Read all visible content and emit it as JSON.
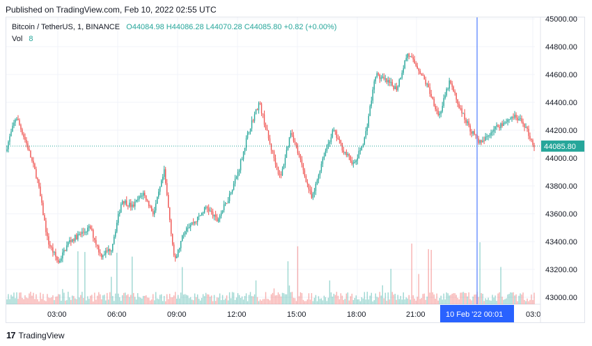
{
  "caption": "Published on TradingView.com, Feb 10, 2022 02:55 UTC",
  "legend": {
    "symbol": "Bitcoin / TetherUS, 1, BINANCE",
    "open": "O44084.98",
    "high": "H44086.28",
    "low": "L44070.28",
    "close": "C44085.80",
    "change": "+0.82 (+0.00%)",
    "vol_label": "Vol",
    "vol_value": "8"
  },
  "branding": {
    "name": "TradingView",
    "mark": "17"
  },
  "colors": {
    "up": "#26a69a",
    "down": "#ef5350",
    "crosshair": "#2962ff",
    "grid": "#f0f3fa"
  },
  "chart_data": {
    "type": "candlestick",
    "symbol": "BTC/USDT",
    "timeframe": "1",
    "ylim": [
      43000,
      45000
    ],
    "y_ticks": [
      "43000.00",
      "43200.00",
      "43400.00",
      "43600.00",
      "43800.00",
      "44000.00",
      "44200.00",
      "44400.00",
      "44600.00",
      "44800.00",
      "45000.00"
    ],
    "x_ticks": [
      "03:00",
      "06:00",
      "09:00",
      "12:00",
      "15:00",
      "18:00",
      "21:00",
      "03:0"
    ],
    "last_price": "44085.80",
    "crosshair_label": "10 Feb '22   00:01",
    "price_path": [
      {
        "t": "01:00",
        "p": 44050
      },
      {
        "t": "01:15",
        "p": 44300
      },
      {
        "t": "01:40",
        "p": 44100
      },
      {
        "t": "02:20",
        "p": 43850
      },
      {
        "t": "02:40",
        "p": 43400
      },
      {
        "t": "03:00",
        "p": 43250
      },
      {
        "t": "03:30",
        "p": 43400
      },
      {
        "t": "04:00",
        "p": 43450
      },
      {
        "t": "05:00",
        "p": 43500
      },
      {
        "t": "05:40",
        "p": 43300
      },
      {
        "t": "06:00",
        "p": 43350
      },
      {
        "t": "06:30",
        "p": 43700
      },
      {
        "t": "07:00",
        "p": 43650
      },
      {
        "t": "07:30",
        "p": 43750
      },
      {
        "t": "08:00",
        "p": 43600
      },
      {
        "t": "08:30",
        "p": 43900
      },
      {
        "t": "09:00",
        "p": 43250
      },
      {
        "t": "09:30",
        "p": 43500
      },
      {
        "t": "10:00",
        "p": 43550
      },
      {
        "t": "11:00",
        "p": 43650
      },
      {
        "t": "11:30",
        "p": 43550
      },
      {
        "t": "12:00",
        "p": 43700
      },
      {
        "t": "12:40",
        "p": 43900
      },
      {
        "t": "13:00",
        "p": 44200
      },
      {
        "t": "13:20",
        "p": 44400
      },
      {
        "t": "13:40",
        "p": 44100
      },
      {
        "t": "14:30",
        "p": 43850
      },
      {
        "t": "15:00",
        "p": 44200
      },
      {
        "t": "15:30",
        "p": 43950
      },
      {
        "t": "16:30",
        "p": 43700
      },
      {
        "t": "17:00",
        "p": 44000
      },
      {
        "t": "17:40",
        "p": 44200
      },
      {
        "t": "18:00",
        "p": 44050
      },
      {
        "t": "18:30",
        "p": 43950
      },
      {
        "t": "19:00",
        "p": 44150
      },
      {
        "t": "19:40",
        "p": 44600
      },
      {
        "t": "20:00",
        "p": 44550
      },
      {
        "t": "20:30",
        "p": 44500
      },
      {
        "t": "21:00",
        "p": 44750
      },
      {
        "t": "21:30",
        "p": 44650
      },
      {
        "t": "22:00",
        "p": 44500
      },
      {
        "t": "22:30",
        "p": 44300
      },
      {
        "t": "23:00",
        "p": 44550
      },
      {
        "t": "23:30",
        "p": 44350
      },
      {
        "t": "00:00",
        "p": 44200
      },
      {
        "t": "00:20",
        "p": 44100
      },
      {
        "t": "01:00",
        "p": 44200
      },
      {
        "t": "01:30",
        "p": 44250
      },
      {
        "t": "02:00",
        "p": 44300
      },
      {
        "t": "02:30",
        "p": 44250
      },
      {
        "t": "02:55",
        "p": 44085
      }
    ]
  }
}
